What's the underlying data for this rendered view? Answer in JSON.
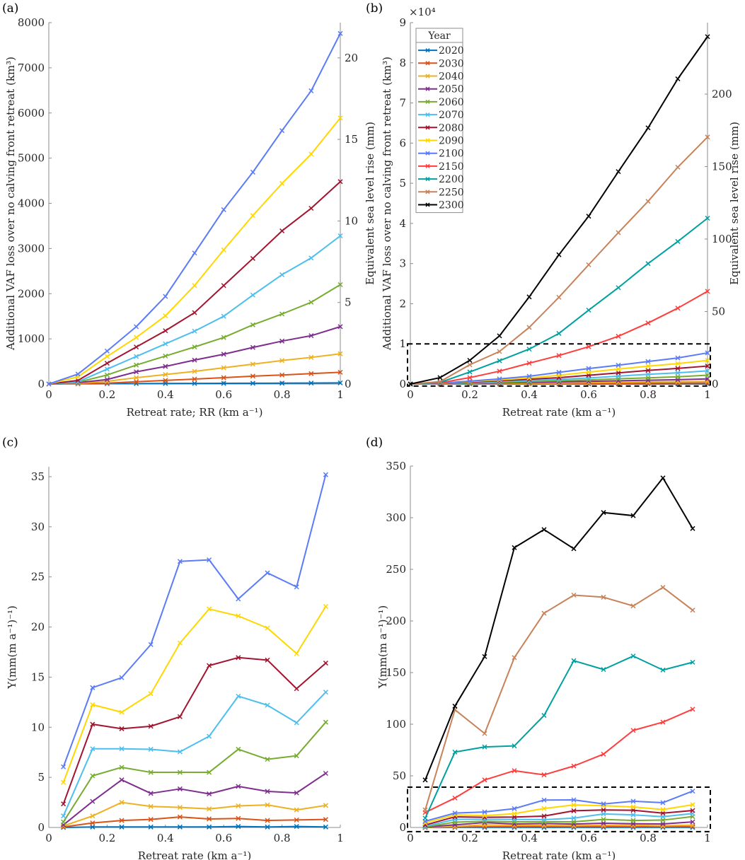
{
  "legend": {
    "title": "Year",
    "entries": [
      "2020",
      "2030",
      "2040",
      "2050",
      "2060",
      "2070",
      "2080",
      "2090",
      "2100",
      "2150",
      "2200",
      "2250",
      "2300"
    ],
    "colors": [
      "#0072BD",
      "#D95319",
      "#EDB120",
      "#7E2F8E",
      "#77AC30",
      "#4DBEEE",
      "#A2142F",
      "#FFD700",
      "#5B7BF7",
      "#FF3D3D",
      "#00A0A0",
      "#C8825A",
      "#000000"
    ]
  },
  "chart_data": [
    {
      "panel": "(a)",
      "type": "line",
      "xlabel": "Retreat rate; RR (km a⁻¹)",
      "ylabel": "Additional VAF loss over no calving front retreat (km³)",
      "ylabel_right": "Equivalent sea level rise (mm)",
      "xlim": [
        0,
        1
      ],
      "ylim": [
        0,
        8000
      ],
      "ylim_right": [
        0,
        22.16
      ],
      "xticks": [
        "0",
        "0.2",
        "0.4",
        "0.6",
        "0.8",
        "1"
      ],
      "yticks": [
        "0",
        "1000",
        "2000",
        "3000",
        "4000",
        "5000",
        "6000",
        "7000",
        "8000"
      ],
      "yticks_right": [
        "0",
        "5",
        "10",
        "15",
        "20"
      ],
      "x": [
        0,
        0.1,
        0.2,
        0.3,
        0.4,
        0.5,
        0.6,
        0.7,
        0.8,
        0.9,
        1.0
      ],
      "series": [
        {
          "name": "2020",
          "values": [
            0,
            5,
            8,
            10,
            12,
            14,
            15,
            17,
            19,
            22,
            25
          ]
        },
        {
          "name": "2030",
          "values": [
            0,
            10,
            20,
            50,
            80,
            110,
            140,
            175,
            200,
            230,
            260
          ]
        },
        {
          "name": "2040",
          "values": [
            0,
            20,
            60,
            140,
            210,
            280,
            360,
            440,
            520,
            590,
            670
          ]
        },
        {
          "name": "2050",
          "values": [
            0,
            30,
            100,
            270,
            390,
            530,
            660,
            810,
            950,
            1070,
            1270
          ]
        },
        {
          "name": "2060",
          "values": [
            0,
            40,
            200,
            420,
            620,
            820,
            1030,
            1310,
            1550,
            1810,
            2200
          ]
        },
        {
          "name": "2070",
          "values": [
            0,
            50,
            330,
            610,
            890,
            1170,
            1500,
            1970,
            2420,
            2790,
            3280
          ]
        },
        {
          "name": "2080",
          "values": [
            0,
            80,
            460,
            820,
            1180,
            1580,
            2180,
            2780,
            3390,
            3890,
            4480
          ]
        },
        {
          "name": "2090",
          "values": [
            0,
            160,
            610,
            1030,
            1510,
            2180,
            2970,
            3730,
            4440,
            5090,
            5890
          ]
        },
        {
          "name": "2100",
          "values": [
            0,
            220,
            730,
            1270,
            1940,
            2900,
            3860,
            4690,
            5610,
            6490,
            7760
          ]
        }
      ]
    },
    {
      "panel": "(b)",
      "type": "line",
      "xlabel": "Retreat rate (km a⁻¹)",
      "ylabel": "Additional VAF loss over no calving front retreat (km³)",
      "ylabel_right": "Equivalent sea level rise (mm)",
      "y_multiplier": "×10⁴",
      "xlim": [
        0,
        1
      ],
      "ylim": [
        0,
        9
      ],
      "ylim_right": [
        0,
        249.3
      ],
      "xticks": [
        "0",
        "0.2",
        "0.4",
        "0.6",
        "0.8",
        "1"
      ],
      "yticks": [
        "0",
        "1",
        "2",
        "3",
        "4",
        "5",
        "6",
        "7",
        "8",
        "9"
      ],
      "yticks_right": [
        "0",
        "50",
        "100",
        "150",
        "200"
      ],
      "inset_box": {
        "x": [
          0,
          1
        ],
        "y": [
          -0.05,
          1.0
        ]
      },
      "x": [
        0,
        0.1,
        0.2,
        0.3,
        0.4,
        0.5,
        0.6,
        0.7,
        0.8,
        0.9,
        1.0
      ],
      "series": [
        {
          "name": "2020",
          "values": [
            0,
            0.0005,
            0.0008,
            0.001,
            0.0012,
            0.0014,
            0.0015,
            0.0017,
            0.0019,
            0.0022,
            0.0025
          ]
        },
        {
          "name": "2030",
          "values": [
            0,
            0.001,
            0.002,
            0.005,
            0.008,
            0.011,
            0.014,
            0.0175,
            0.02,
            0.023,
            0.026
          ]
        },
        {
          "name": "2040",
          "values": [
            0,
            0.002,
            0.006,
            0.014,
            0.021,
            0.028,
            0.036,
            0.044,
            0.052,
            0.059,
            0.067
          ]
        },
        {
          "name": "2050",
          "values": [
            0,
            0.003,
            0.01,
            0.027,
            0.039,
            0.053,
            0.066,
            0.081,
            0.095,
            0.107,
            0.127
          ]
        },
        {
          "name": "2060",
          "values": [
            0,
            0.004,
            0.02,
            0.042,
            0.062,
            0.082,
            0.103,
            0.131,
            0.155,
            0.181,
            0.22
          ]
        },
        {
          "name": "2070",
          "values": [
            0,
            0.005,
            0.033,
            0.061,
            0.089,
            0.117,
            0.15,
            0.197,
            0.242,
            0.279,
            0.328
          ]
        },
        {
          "name": "2080",
          "values": [
            0,
            0.008,
            0.046,
            0.082,
            0.118,
            0.158,
            0.218,
            0.278,
            0.339,
            0.389,
            0.448
          ]
        },
        {
          "name": "2090",
          "values": [
            0,
            0.016,
            0.061,
            0.103,
            0.151,
            0.218,
            0.297,
            0.373,
            0.444,
            0.509,
            0.589
          ]
        },
        {
          "name": "2100",
          "values": [
            0,
            0.022,
            0.073,
            0.127,
            0.194,
            0.29,
            0.386,
            0.469,
            0.561,
            0.649,
            0.776
          ]
        },
        {
          "name": "2150",
          "values": [
            0,
            0.03,
            0.16,
            0.32,
            0.52,
            0.71,
            0.93,
            1.19,
            1.52,
            1.89,
            2.31
          ]
        },
        {
          "name": "2200",
          "values": [
            0,
            0.04,
            0.3,
            0.58,
            0.87,
            1.26,
            1.84,
            2.4,
            3.0,
            3.55,
            4.13
          ]
        },
        {
          "name": "2250",
          "values": [
            0,
            0.06,
            0.48,
            0.81,
            1.41,
            2.16,
            2.97,
            3.77,
            4.55,
            5.4,
            6.15
          ]
        },
        {
          "name": "2300",
          "values": [
            0,
            0.16,
            0.59,
            1.2,
            2.17,
            3.22,
            4.18,
            5.29,
            6.38,
            7.6,
            8.65
          ]
        }
      ]
    },
    {
      "panel": "(c)",
      "type": "line",
      "xlabel": "Retreat rate (km a⁻¹)",
      "ylabel": "Υ(mm(m a⁻¹)⁻¹)",
      "xlim": [
        0,
        1
      ],
      "ylim": [
        0,
        36
      ],
      "xticks": [
        "0",
        "0.2",
        "0.4",
        "0.6",
        "0.8",
        "1"
      ],
      "yticks": [
        "0",
        "5",
        "10",
        "15",
        "20",
        "25",
        "30",
        "35"
      ],
      "x": [
        0.05,
        0.15,
        0.25,
        0.35,
        0.45,
        0.55,
        0.65,
        0.75,
        0.85,
        0.95
      ],
      "series": [
        {
          "name": "2020",
          "values": [
            0.0,
            0.05,
            0.05,
            0.05,
            0.05,
            0.05,
            0.1,
            0.05,
            0.1,
            0.05
          ]
        },
        {
          "name": "2030",
          "values": [
            0.05,
            0.45,
            0.7,
            0.8,
            1.05,
            0.85,
            0.9,
            0.7,
            0.75,
            0.8
          ]
        },
        {
          "name": "2040",
          "values": [
            0.15,
            1.15,
            2.5,
            2.1,
            2.0,
            1.85,
            2.15,
            2.25,
            1.75,
            2.2
          ]
        },
        {
          "name": "2050",
          "values": [
            0.25,
            2.6,
            4.75,
            3.4,
            3.85,
            3.35,
            4.1,
            3.6,
            3.45,
            5.4
          ]
        },
        {
          "name": "2060",
          "values": [
            0.55,
            5.15,
            6.0,
            5.5,
            5.5,
            5.5,
            7.8,
            6.8,
            7.15,
            10.5
          ]
        },
        {
          "name": "2070",
          "values": [
            1.15,
            7.85,
            7.85,
            7.8,
            7.55,
            9.1,
            13.1,
            12.2,
            10.45,
            13.5
          ]
        },
        {
          "name": "2080",
          "values": [
            2.35,
            10.3,
            9.85,
            10.1,
            11.05,
            16.15,
            16.95,
            16.7,
            13.85,
            16.4
          ]
        },
        {
          "name": "2090",
          "values": [
            4.5,
            12.25,
            11.5,
            13.35,
            18.4,
            21.8,
            21.1,
            19.9,
            17.35,
            22.05
          ]
        },
        {
          "name": "2100",
          "values": [
            6.05,
            13.95,
            14.95,
            18.25,
            26.55,
            26.7,
            22.8,
            25.4,
            24.0,
            35.2
          ]
        }
      ]
    },
    {
      "panel": "(d)",
      "type": "line",
      "xlabel": "Retreat rate (km a⁻¹)",
      "ylabel": "Υ(mm(m a⁻¹)⁻¹)",
      "xlim": [
        0,
        1
      ],
      "ylim": [
        0,
        350
      ],
      "xticks": [
        "0",
        "0.2",
        "0.4",
        "0.6",
        "0.8",
        "1"
      ],
      "yticks": [
        "0",
        "50",
        "100",
        "150",
        "200",
        "250",
        "300",
        "350"
      ],
      "inset_box": {
        "x": [
          0,
          1
        ],
        "y": [
          -4,
          39
        ]
      },
      "x": [
        0.05,
        0.15,
        0.25,
        0.35,
        0.45,
        0.55,
        0.65,
        0.75,
        0.85,
        0.95
      ],
      "series": [
        {
          "name": "2020",
          "values": [
            0.0,
            0.05,
            0.05,
            0.05,
            0.05,
            0.05,
            0.1,
            0.05,
            0.1,
            0.05
          ]
        },
        {
          "name": "2030",
          "values": [
            0.05,
            0.45,
            0.7,
            0.8,
            1.05,
            0.85,
            0.9,
            0.7,
            0.75,
            0.8
          ]
        },
        {
          "name": "2040",
          "values": [
            0.15,
            1.15,
            2.5,
            2.1,
            2.0,
            1.85,
            2.15,
            2.25,
            1.75,
            2.2
          ]
        },
        {
          "name": "2050",
          "values": [
            0.25,
            2.6,
            4.75,
            3.4,
            3.85,
            3.35,
            4.1,
            3.6,
            3.45,
            5.4
          ]
        },
        {
          "name": "2060",
          "values": [
            0.55,
            5.15,
            6.0,
            5.5,
            5.5,
            5.5,
            7.8,
            6.8,
            7.15,
            10.5
          ]
        },
        {
          "name": "2070",
          "values": [
            1.15,
            7.85,
            7.85,
            7.8,
            7.55,
            9.1,
            13.1,
            12.2,
            10.45,
            13.5
          ]
        },
        {
          "name": "2080",
          "values": [
            2.35,
            10.3,
            9.85,
            10.1,
            11.05,
            16.15,
            16.95,
            16.7,
            13.85,
            16.4
          ]
        },
        {
          "name": "2090",
          "values": [
            4.5,
            12.25,
            11.5,
            13.35,
            18.4,
            21.8,
            21.1,
            19.9,
            17.35,
            22.05
          ]
        },
        {
          "name": "2100",
          "values": [
            6.05,
            13.95,
            14.95,
            18.25,
            26.55,
            26.7,
            22.8,
            25.4,
            24.0,
            35.2
          ]
        },
        {
          "name": "2150",
          "values": [
            14.5,
            28.5,
            46,
            55,
            51,
            59.5,
            71,
            94,
            102,
            114.5
          ]
        },
        {
          "name": "2200",
          "values": [
            9,
            73,
            78,
            79,
            108.5,
            161.5,
            153,
            166,
            152.5,
            160
          ]
        },
        {
          "name": "2250",
          "values": [
            17,
            114,
            91,
            164.5,
            207.5,
            225,
            223,
            214.5,
            232.5,
            210.5
          ]
        },
        {
          "name": "2300",
          "values": [
            46,
            117.5,
            165.5,
            271,
            288.5,
            270,
            305,
            302,
            338.5,
            289.5
          ]
        }
      ]
    }
  ]
}
